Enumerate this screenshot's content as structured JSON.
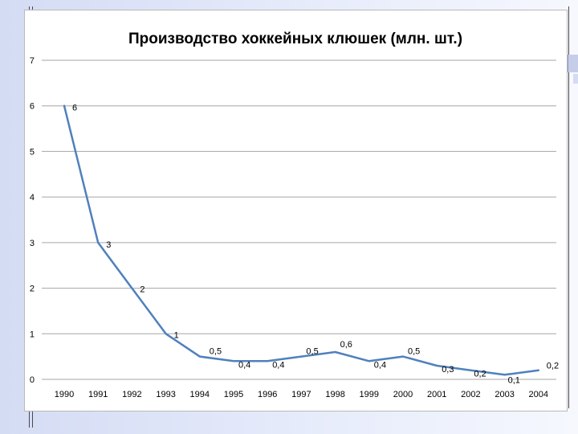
{
  "theme": {
    "line_color": "#4f81bd",
    "grid_color": "#a6a6a6",
    "text_color": "#000000"
  },
  "chart_data": {
    "type": "line",
    "title": "Производство хоккейных клюшек (млн. шт.)",
    "xlabel": "",
    "ylabel": "",
    "ylim": [
      0,
      7
    ],
    "yticks": [
      0,
      1,
      2,
      3,
      4,
      5,
      6,
      7
    ],
    "grid": true,
    "legend": "none",
    "x": [
      "1990",
      "1991",
      "1992",
      "1993",
      "1994",
      "1995",
      "1996",
      "1997",
      "1998",
      "1999",
      "2000",
      "2001",
      "2002",
      "2003",
      "2004"
    ],
    "values": [
      6,
      3,
      2,
      1,
      0.5,
      0.4,
      0.4,
      0.5,
      0.6,
      0.4,
      0.5,
      0.3,
      0.2,
      0.1,
      0.2
    ],
    "data_labels": [
      "6",
      "3",
      "2",
      "1",
      "0,5",
      "0,4",
      "0,4",
      "0,5",
      "0,6",
      "0,4",
      "0,5",
      "0,3",
      "0,2",
      "0,1",
      "0,2"
    ]
  }
}
